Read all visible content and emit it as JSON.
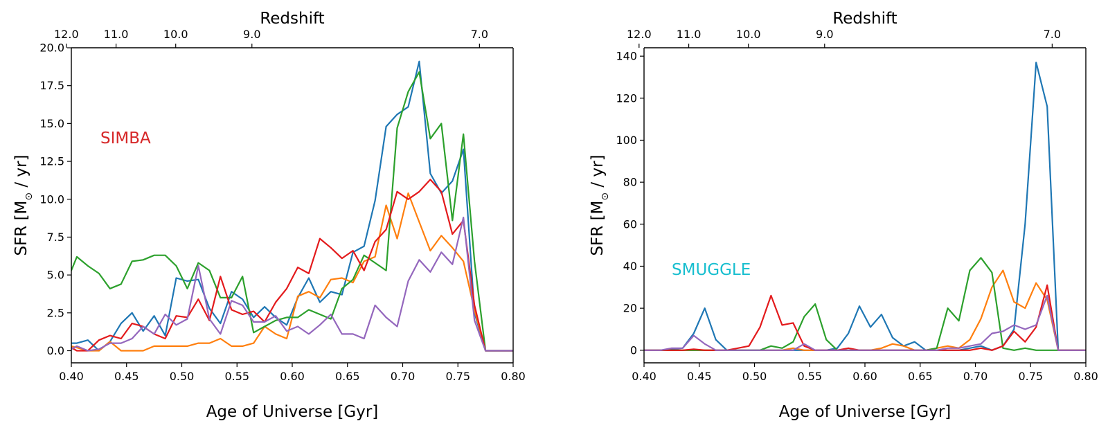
{
  "chart_data": [
    {
      "type": "line",
      "panel_label": "SIMBA",
      "panel_label_color": "#d62728",
      "xlabel": "Age of Universe [Gyr]",
      "ylabel_main": "SFR [M",
      "ylabel_sub": "⊙",
      "ylabel_tail": " / yr]",
      "top_label": "Redshift",
      "xlim": [
        0.4,
        0.8
      ],
      "ylim": [
        -0.8,
        20.0
      ],
      "xticks": [
        0.4,
        0.45,
        0.5,
        0.55,
        0.6,
        0.65,
        0.7,
        0.75,
        0.8
      ],
      "xtick_labels": [
        "0.40",
        "0.45",
        "0.50",
        "0.55",
        "0.60",
        "0.65",
        "0.70",
        "0.75",
        "0.80"
      ],
      "yticks": [
        0.0,
        2.5,
        5.0,
        7.5,
        10.0,
        12.5,
        15.0,
        17.5,
        20.0
      ],
      "ytick_labels": [
        "0.0",
        "2.5",
        "5.0",
        "7.5",
        "10.0",
        "12.5",
        "15.0",
        "17.5",
        "20.0"
      ],
      "top_ticks": [
        0.3955,
        0.4405,
        0.4945,
        0.5635,
        0.7695
      ],
      "top_tick_labels": [
        "12.0",
        "11.0",
        "10.0",
        "9.0",
        "7.0"
      ],
      "x": [
        0.4,
        0.405,
        0.415,
        0.425,
        0.435,
        0.445,
        0.455,
        0.465,
        0.475,
        0.485,
        0.495,
        0.505,
        0.515,
        0.525,
        0.535,
        0.545,
        0.555,
        0.565,
        0.575,
        0.585,
        0.595,
        0.605,
        0.615,
        0.625,
        0.635,
        0.645,
        0.655,
        0.665,
        0.675,
        0.685,
        0.695,
        0.705,
        0.715,
        0.725,
        0.735,
        0.745,
        0.755,
        0.765,
        0.775,
        0.785,
        0.8
      ],
      "series": [
        {
          "name": "blue",
          "color": "#1f77b4",
          "values": [
            0.5,
            0.5,
            0.7,
            0.0,
            0.6,
            1.8,
            2.5,
            1.3,
            2.3,
            1.0,
            4.8,
            4.6,
            4.7,
            2.8,
            1.8,
            3.9,
            3.4,
            2.2,
            2.9,
            2.2,
            1.7,
            3.5,
            4.8,
            3.2,
            3.9,
            3.7,
            6.5,
            6.9,
            9.9,
            14.8,
            15.6,
            16.1,
            19.1,
            11.7,
            10.4,
            11.2,
            13.3,
            2.5,
            0.0,
            0.0,
            0.0
          ]
        },
        {
          "name": "orange",
          "color": "#ff7f0e",
          "values": [
            0.3,
            0.2,
            0.0,
            0.0,
            0.6,
            0.0,
            0.0,
            0.0,
            0.3,
            0.3,
            0.3,
            0.3,
            0.5,
            0.5,
            0.8,
            0.3,
            0.3,
            0.5,
            1.6,
            1.1,
            0.8,
            3.6,
            3.9,
            3.5,
            4.7,
            4.8,
            4.5,
            5.9,
            6.2,
            9.6,
            7.4,
            10.4,
            8.5,
            6.6,
            7.6,
            6.8,
            5.9,
            2.7,
            0.0,
            0.0,
            0.0
          ]
        },
        {
          "name": "green",
          "color": "#2ca02c",
          "values": [
            5.3,
            6.2,
            5.6,
            5.1,
            4.1,
            4.4,
            5.9,
            6.0,
            6.3,
            6.3,
            5.6,
            4.1,
            5.8,
            5.3,
            3.5,
            3.5,
            4.9,
            1.2,
            1.6,
            2.0,
            2.2,
            2.2,
            2.7,
            2.4,
            2.1,
            4.1,
            4.7,
            6.3,
            5.8,
            5.3,
            14.7,
            17.1,
            18.4,
            14.0,
            15.0,
            8.6,
            14.3,
            5.9,
            0.0,
            0.0,
            0.0
          ]
        },
        {
          "name": "red",
          "color": "#e31a1c",
          "values": [
            0.2,
            0.0,
            0.0,
            0.7,
            1.0,
            0.8,
            1.8,
            1.6,
            1.1,
            0.8,
            2.3,
            2.2,
            3.4,
            2.0,
            4.9,
            2.7,
            2.4,
            2.6,
            1.9,
            3.2,
            4.1,
            5.5,
            5.1,
            7.4,
            6.8,
            6.1,
            6.6,
            5.3,
            7.2,
            8.0,
            10.5,
            10.0,
            10.5,
            11.3,
            10.5,
            7.7,
            8.6,
            3.0,
            0.0,
            0.0,
            0.0
          ]
        },
        {
          "name": "purple",
          "color": "#9467bd",
          "values": [
            0.1,
            0.3,
            0.0,
            0.1,
            0.5,
            0.5,
            0.8,
            1.6,
            1.1,
            2.4,
            1.7,
            2.1,
            5.6,
            2.1,
            1.1,
            3.3,
            3.0,
            1.9,
            1.9,
            2.3,
            1.3,
            1.6,
            1.1,
            1.7,
            2.4,
            1.1,
            1.1,
            0.8,
            3.0,
            2.2,
            1.6,
            4.6,
            6.0,
            5.2,
            6.5,
            5.7,
            8.8,
            2.0,
            0.0,
            0.0,
            0.0
          ]
        }
      ]
    },
    {
      "type": "line",
      "panel_label": "SMUGGLE",
      "panel_label_color": "#17becf",
      "xlabel": "Age of Universe [Gyr]",
      "ylabel_main": "SFR [M",
      "ylabel_sub": "⊙",
      "ylabel_tail": " / yr]",
      "top_label": "Redshift",
      "xlim": [
        0.4,
        0.8
      ],
      "ylim": [
        -6,
        144
      ],
      "xticks": [
        0.4,
        0.45,
        0.5,
        0.55,
        0.6,
        0.65,
        0.7,
        0.75,
        0.8
      ],
      "xtick_labels": [
        "0.40",
        "0.45",
        "0.50",
        "0.55",
        "0.60",
        "0.65",
        "0.70",
        "0.75",
        "0.80"
      ],
      "yticks": [
        0,
        20,
        40,
        60,
        80,
        100,
        120,
        140
      ],
      "ytick_labels": [
        "0",
        "20",
        "40",
        "60",
        "80",
        "100",
        "120",
        "140"
      ],
      "top_ticks": [
        0.3955,
        0.4405,
        0.4945,
        0.5635,
        0.7695
      ],
      "top_tick_labels": [
        "12.0",
        "11.0",
        "10.0",
        "9.0",
        "7.0"
      ],
      "x": [
        0.4,
        0.405,
        0.415,
        0.425,
        0.435,
        0.445,
        0.455,
        0.465,
        0.475,
        0.485,
        0.495,
        0.505,
        0.515,
        0.525,
        0.535,
        0.545,
        0.555,
        0.565,
        0.575,
        0.585,
        0.595,
        0.605,
        0.615,
        0.625,
        0.635,
        0.645,
        0.655,
        0.665,
        0.675,
        0.685,
        0.695,
        0.705,
        0.715,
        0.725,
        0.735,
        0.745,
        0.755,
        0.765,
        0.775,
        0.785,
        0.8
      ],
      "series": [
        {
          "name": "blue",
          "color": "#1f77b4",
          "values": [
            0,
            0,
            0,
            0.5,
            1.0,
            8,
            20,
            5,
            0,
            0,
            0,
            0,
            0,
            0,
            0,
            0,
            0,
            0,
            1,
            8,
            21,
            11,
            17,
            6,
            2,
            4,
            0,
            0,
            0,
            0,
            1,
            2,
            0,
            2,
            10,
            60,
            137,
            116,
            0,
            0,
            0
          ]
        },
        {
          "name": "orange",
          "color": "#ff7f0e",
          "values": [
            0,
            0,
            0,
            0,
            0,
            0,
            0,
            0,
            0,
            0,
            0,
            0,
            0,
            0,
            1,
            0,
            0,
            0,
            0,
            0,
            0,
            0,
            1,
            3,
            2,
            0,
            0,
            1,
            2,
            1,
            5,
            15,
            30,
            38,
            23,
            20,
            32,
            24,
            0,
            0,
            0
          ]
        },
        {
          "name": "green",
          "color": "#2ca02c",
          "values": [
            0,
            0,
            0,
            0,
            0,
            0,
            0,
            0,
            0,
            0,
            0,
            0,
            2,
            1,
            4,
            16,
            22,
            5,
            0,
            0,
            0,
            0,
            0,
            0,
            0,
            0,
            0,
            1,
            20,
            14,
            38,
            44,
            37,
            1,
            0,
            1,
            0,
            0,
            0,
            0,
            0
          ]
        },
        {
          "name": "red",
          "color": "#e31a1c",
          "values": [
            0,
            0,
            0,
            0,
            0,
            0.5,
            0,
            0,
            0,
            1,
            2,
            11,
            26,
            12,
            13,
            2,
            0,
            0,
            0,
            1,
            0,
            0,
            0,
            0,
            0,
            0,
            0,
            0,
            0,
            0,
            0,
            1,
            0,
            2,
            9,
            4,
            11,
            31,
            0,
            0,
            0
          ]
        },
        {
          "name": "purple",
          "color": "#9467bd",
          "values": [
            0,
            0,
            0,
            1,
            1,
            7,
            3,
            0,
            0,
            0,
            0,
            0,
            0,
            0,
            0,
            3,
            0,
            0,
            0,
            0,
            0,
            0,
            0,
            0,
            0,
            0,
            0,
            0,
            1,
            1,
            2,
            3,
            8,
            9,
            12,
            10,
            12,
            26,
            0,
            0,
            0
          ]
        }
      ]
    }
  ]
}
